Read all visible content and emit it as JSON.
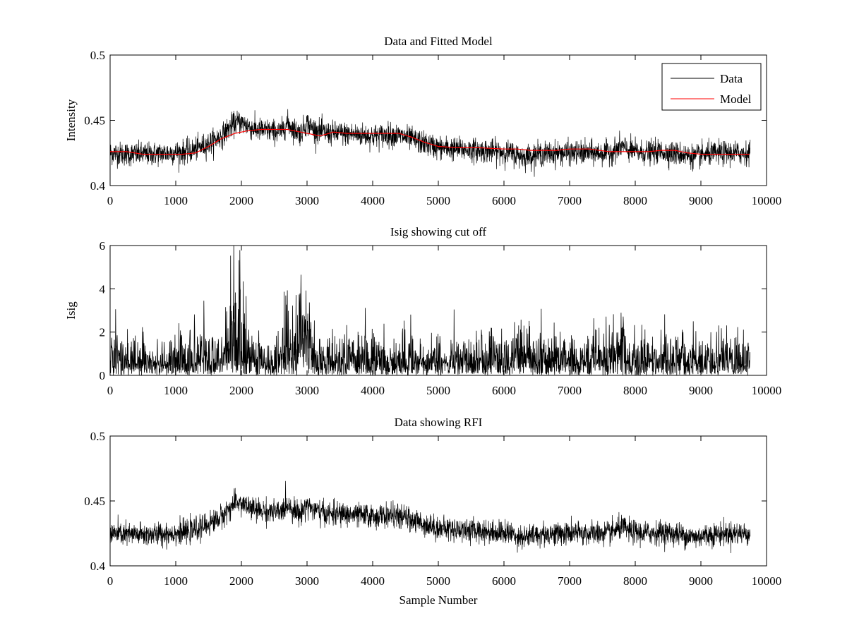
{
  "chart_data": [
    {
      "type": "line",
      "title": "Data and Fitted Model",
      "xlabel": "",
      "ylabel": "Intensity",
      "xlim": [
        0,
        10000
      ],
      "ylim": [
        0.4,
        0.5
      ],
      "x_ticks": [
        "0",
        "1000",
        "2000",
        "3000",
        "4000",
        "5000",
        "6000",
        "7000",
        "8000",
        "9000",
        "10000"
      ],
      "y_ticks": [
        "0.4",
        "0.45",
        "0.5"
      ],
      "legend": {
        "position": "top-right",
        "entries": [
          "Data",
          "Model"
        ]
      },
      "series": [
        {
          "name": "Data",
          "color": "#000000",
          "noise": 0.0045,
          "x": [
            0,
            300,
            600,
            900,
            1200,
            1500,
            1700,
            1850,
            1950,
            2050,
            2200,
            2400,
            2600,
            2700,
            2800,
            2900,
            3000,
            3100,
            3300,
            3500,
            3800,
            4000,
            4300,
            4500,
            4800,
            5000,
            5300,
            5600,
            5900,
            6100,
            6300,
            6500,
            6800,
            7000,
            7300,
            7600,
            7800,
            7900,
            8100,
            8400,
            8700,
            8900,
            9100,
            9400,
            9750
          ],
          "y": [
            0.425,
            0.424,
            0.424,
            0.425,
            0.426,
            0.432,
            0.438,
            0.446,
            0.449,
            0.447,
            0.443,
            0.442,
            0.441,
            0.448,
            0.443,
            0.44,
            0.448,
            0.443,
            0.44,
            0.44,
            0.439,
            0.438,
            0.439,
            0.437,
            0.432,
            0.429,
            0.428,
            0.427,
            0.426,
            0.425,
            0.422,
            0.424,
            0.425,
            0.425,
            0.425,
            0.425,
            0.43,
            0.427,
            0.425,
            0.426,
            0.424,
            0.422,
            0.424,
            0.425,
            0.425
          ]
        },
        {
          "name": "Model",
          "color": "#ff0000",
          "x": [
            0,
            250,
            500,
            800,
            1100,
            1300,
            1500,
            1700,
            1900,
            2100,
            2300,
            2500,
            2700,
            2900,
            3100,
            3200,
            3400,
            3600,
            3800,
            4000,
            4200,
            4400,
            4600,
            4800,
            5000,
            5300,
            5600,
            6000,
            6200,
            6400,
            6800,
            7000,
            7300,
            7600,
            7800,
            8000,
            8200,
            8400,
            8600,
            8800,
            9000,
            9300,
            9750
          ],
          "y": [
            0.426,
            0.426,
            0.424,
            0.424,
            0.424,
            0.425,
            0.43,
            0.436,
            0.44,
            0.442,
            0.443,
            0.443,
            0.443,
            0.441,
            0.439,
            0.438,
            0.441,
            0.44,
            0.44,
            0.44,
            0.44,
            0.44,
            0.437,
            0.433,
            0.43,
            0.429,
            0.429,
            0.428,
            0.428,
            0.427,
            0.427,
            0.428,
            0.428,
            0.426,
            0.426,
            0.426,
            0.426,
            0.427,
            0.427,
            0.425,
            0.424,
            0.424,
            0.424
          ]
        }
      ]
    },
    {
      "type": "line",
      "title": "Isig showing cut off",
      "xlabel": "",
      "ylabel": "Isig",
      "xlim": [
        0,
        10000
      ],
      "ylim": [
        0,
        6
      ],
      "x_ticks": [
        "0",
        "1000",
        "2000",
        "3000",
        "4000",
        "5000",
        "6000",
        "7000",
        "8000",
        "9000",
        "10000"
      ],
      "y_ticks": [
        "0",
        "2",
        "4",
        "6"
      ],
      "series": [
        {
          "color": "#000000",
          "x": [
            0,
            500,
            1000,
            1400,
            1700,
            1850,
            1900,
            2000,
            2100,
            2300,
            2600,
            2700,
            2800,
            2900,
            3000,
            3100,
            3300,
            3600,
            4000,
            4500,
            5000,
            5500,
            5900,
            6100,
            6300,
            6500,
            6800,
            7000,
            7300,
            7600,
            7800,
            7900,
            8200,
            8600,
            9000,
            9400,
            9750
          ],
          "y": [
            1.1,
            1.0,
            1.1,
            1.2,
            1.2,
            2.5,
            3.2,
            2.6,
            1.2,
            1.1,
            1.0,
            2.4,
            1.1,
            2.2,
            2.9,
            1.1,
            1.0,
            1.1,
            1.0,
            1.0,
            1.0,
            1.0,
            1.1,
            1.3,
            1.4,
            1.2,
            1.1,
            1.1,
            1.0,
            1.1,
            1.8,
            1.2,
            1.0,
            1.1,
            1.0,
            1.0,
            1.0
          ]
        }
      ]
    },
    {
      "type": "line",
      "title": "Data showing RFI",
      "xlabel": "Sample Number",
      "ylabel": "",
      "xlim": [
        0,
        10000
      ],
      "ylim": [
        0.4,
        0.5
      ],
      "x_ticks": [
        "0",
        "1000",
        "2000",
        "3000",
        "4000",
        "5000",
        "6000",
        "7000",
        "8000",
        "9000",
        "10000"
      ],
      "y_ticks": [
        "0.4",
        "0.45",
        "0.5"
      ],
      "series": [
        {
          "color": "#000000",
          "noise": 0.0045,
          "x": [
            0,
            300,
            600,
            900,
            1200,
            1500,
            1700,
            1850,
            1950,
            2050,
            2200,
            2400,
            2600,
            2700,
            2800,
            2900,
            3000,
            3100,
            3300,
            3500,
            3800,
            4000,
            4300,
            4500,
            4800,
            5000,
            5300,
            5600,
            5900,
            6100,
            6300,
            6500,
            6800,
            7000,
            7300,
            7600,
            7800,
            7900,
            8100,
            8400,
            8700,
            8900,
            9100,
            9400,
            9750
          ],
          "y": [
            0.425,
            0.424,
            0.424,
            0.425,
            0.426,
            0.432,
            0.438,
            0.446,
            0.449,
            0.447,
            0.443,
            0.442,
            0.441,
            0.448,
            0.443,
            0.44,
            0.448,
            0.443,
            0.44,
            0.44,
            0.439,
            0.438,
            0.439,
            0.437,
            0.432,
            0.429,
            0.428,
            0.427,
            0.426,
            0.425,
            0.422,
            0.424,
            0.425,
            0.425,
            0.425,
            0.425,
            0.43,
            0.427,
            0.425,
            0.426,
            0.424,
            0.422,
            0.424,
            0.425,
            0.425
          ]
        }
      ]
    }
  ]
}
